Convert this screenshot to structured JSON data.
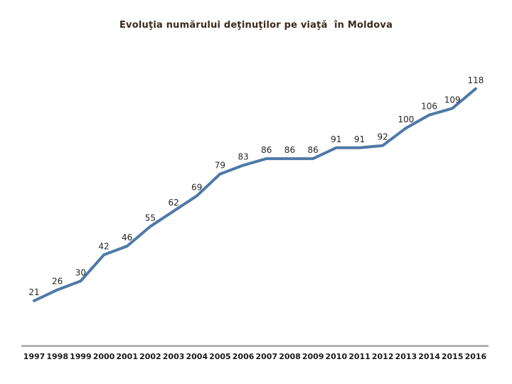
{
  "slide": {
    "title": "Evoluţia numărului deţinuţilor pe viaţă  în Moldova"
  },
  "colors": {
    "background": "#FFFFFF",
    "title": "#3A2A1D",
    "line": "#4E79A8",
    "axis": "#9A9A9A",
    "data_label": "#262626",
    "year_label": "#1A1A1A"
  },
  "chart_data": {
    "type": "line",
    "title": "Evoluţia numărului deţinuţilor pe viaţă în Moldova",
    "categories": [
      "1997",
      "1998",
      "1999",
      "2000",
      "2001",
      "2002",
      "2003",
      "2004",
      "2005",
      "2006",
      "2007",
      "2008",
      "2009",
      "2010",
      "2011",
      "2012",
      "2013",
      "2014",
      "2015",
      "2016"
    ],
    "values": [
      21,
      26,
      30,
      42,
      46,
      55,
      62,
      69,
      79,
      83,
      86,
      86,
      86,
      91,
      91,
      92,
      100,
      106,
      109,
      118
    ],
    "xlabel": "",
    "ylabel": "",
    "ylim": [
      0,
      140
    ],
    "grid": false,
    "legend": false,
    "data_labels": "above",
    "y_axis_visible": false,
    "x_axis_visible": true
  }
}
